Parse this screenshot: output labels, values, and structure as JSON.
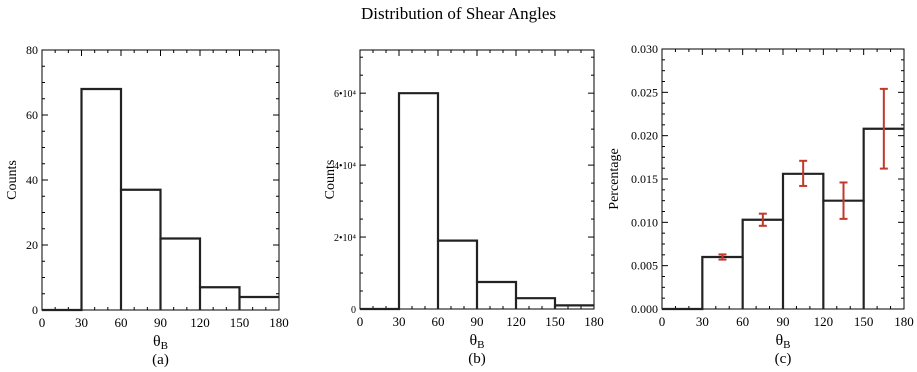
{
  "suptitle": "Distribution of Shear Angles",
  "colors": {
    "line": "#222222",
    "error": "#c0392b",
    "axes": "#000000"
  },
  "chart_data": [
    {
      "type": "histogram",
      "panel_label": "(a)",
      "xlabel": "θ",
      "xlabel_sub": "B",
      "ylabel": "Counts",
      "xlim": [
        0,
        180
      ],
      "ylim": [
        0,
        80
      ],
      "xticks": [
        0,
        30,
        60,
        90,
        120,
        150,
        180
      ],
      "yticks": [
        0,
        20,
        40,
        60,
        80
      ],
      "ytick_labels": [
        "0",
        "20",
        "40",
        "60",
        "80"
      ],
      "bin_edges": [
        0,
        30,
        60,
        90,
        120,
        150,
        180
      ],
      "values": [
        0,
        68,
        37,
        22,
        7,
        4
      ]
    },
    {
      "type": "histogram",
      "panel_label": "(b)",
      "xlabel": "θ",
      "xlabel_sub": "B",
      "ylabel": "Counts",
      "xlim": [
        0,
        180
      ],
      "ylim": [
        0,
        72000
      ],
      "xticks": [
        0,
        30,
        60,
        90,
        120,
        150,
        180
      ],
      "yticks": [
        0,
        20000,
        40000,
        60000
      ],
      "ytick_labels": [
        "0",
        "2•10⁴",
        "4•10⁴",
        "6•10⁴"
      ],
      "bin_edges": [
        0,
        30,
        60,
        90,
        120,
        150,
        180
      ],
      "values": [
        0,
        60000,
        19000,
        7500,
        3000,
        1000
      ]
    },
    {
      "type": "histogram",
      "panel_label": "(c)",
      "xlabel": "θ",
      "xlabel_sub": "B",
      "ylabel": "Percentage",
      "xlim": [
        0,
        180
      ],
      "ylim": [
        0,
        0.03
      ],
      "xticks": [
        0,
        30,
        60,
        90,
        120,
        150,
        180
      ],
      "yticks": [
        0,
        0.005,
        0.01,
        0.015,
        0.02,
        0.025,
        0.03
      ],
      "ytick_labels": [
        "0.000",
        "0.005",
        "0.010",
        "0.015",
        "0.020",
        "0.025",
        "0.030"
      ],
      "bin_edges": [
        0,
        30,
        60,
        90,
        120,
        150,
        180
      ],
      "values": [
        0,
        0.006,
        0.0103,
        0.0156,
        0.0125,
        0.0208
      ],
      "error_bars": [
        {
          "x": 45,
          "low": 0.0057,
          "high": 0.0063
        },
        {
          "x": 75,
          "low": 0.0096,
          "high": 0.011
        },
        {
          "x": 105,
          "low": 0.0142,
          "high": 0.0171
        },
        {
          "x": 135,
          "low": 0.0104,
          "high": 0.0146
        },
        {
          "x": 165,
          "low": 0.0162,
          "high": 0.0254
        }
      ]
    }
  ]
}
